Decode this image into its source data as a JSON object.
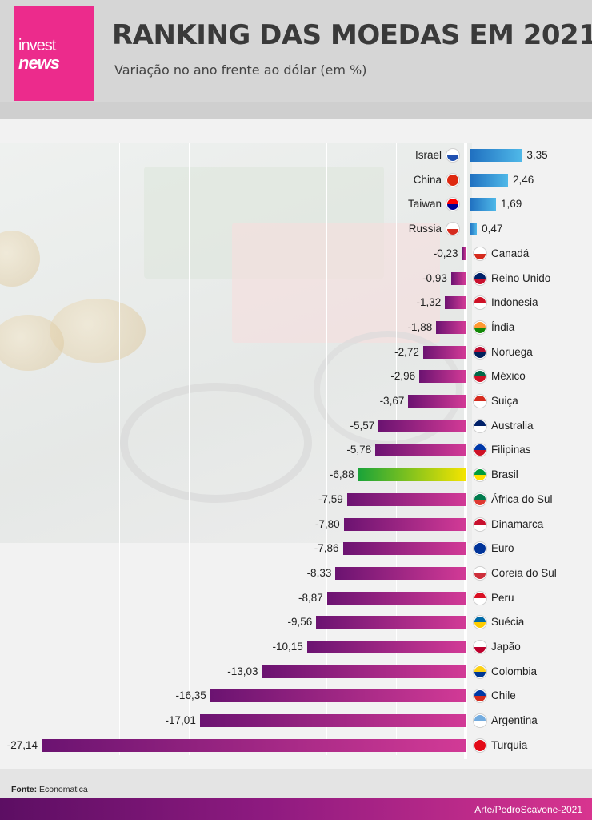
{
  "header": {
    "logo_line1": "invest",
    "logo_line2": "news",
    "title": "RANKING DAS MOEDAS EM 2021",
    "subtitle": "Variação no ano frente ao dólar (em %)"
  },
  "chart_data": {
    "type": "bar",
    "orientation": "horizontal",
    "title": "RANKING DAS MOEDAS EM 2021",
    "subtitle": "Variação no ano frente ao dólar (em %)",
    "xlabel": "",
    "ylabel": "",
    "xlim": [
      -27.14,
      3.35
    ],
    "grid": true,
    "legend": "none",
    "categories": [
      "Israel",
      "China",
      "Taiwan",
      "Russia",
      "Canadá",
      "Reino Unido",
      "Indonesia",
      "Índia",
      "Noruega",
      "México",
      "Suiça",
      "Australia",
      "Filipinas",
      "Brasil",
      "África do Sul",
      "Dinamarca",
      "Euro",
      "Coreia do Sul",
      "Peru",
      "Suécia",
      "Japão",
      "Colombia",
      "Chile",
      "Argentina",
      "Turquia"
    ],
    "value_labels": [
      "3,35",
      "2,46",
      "1,69",
      "0,47",
      "-0,23",
      "-0,93",
      "-1,32",
      "-1,88",
      "-2,72",
      "-2,96",
      "-3,67",
      "-5,57",
      "-5,78",
      "-6,88",
      "-7,59",
      "-7,80",
      "-7,86",
      "-8,33",
      "-8,87",
      "-9,56",
      "-10,15",
      "-13,03",
      "-16,35",
      "-17,01",
      "-27,14"
    ],
    "values": [
      3.35,
      2.46,
      1.69,
      0.47,
      -0.23,
      -0.93,
      -1.32,
      -1.88,
      -2.72,
      -2.96,
      -3.67,
      -5.57,
      -5.78,
      -6.88,
      -7.59,
      -7.8,
      -7.86,
      -8.33,
      -8.87,
      -9.56,
      -10.15,
      -13.03,
      -16.35,
      -17.01,
      -27.14
    ],
    "highlight": "Brasil",
    "flag_icons": [
      "israel-flag-icon",
      "china-flag-icon",
      "taiwan-flag-icon",
      "russia-flag-icon",
      "canada-flag-icon",
      "united-kingdom-flag-icon",
      "indonesia-flag-icon",
      "india-flag-icon",
      "norway-flag-icon",
      "mexico-flag-icon",
      "switzerland-flag-icon",
      "australia-flag-icon",
      "philippines-flag-icon",
      "brazil-flag-icon",
      "south-africa-flag-icon",
      "denmark-flag-icon",
      "euro-flag-icon",
      "south-korea-flag-icon",
      "peru-flag-icon",
      "sweden-flag-icon",
      "japan-flag-icon",
      "colombia-flag-icon",
      "chile-flag-icon",
      "argentina-flag-icon",
      "turkey-flag-icon"
    ],
    "flag_colors": [
      [
        "#ffffff",
        "#1f4fb0"
      ],
      [
        "#de2910",
        "#de2910"
      ],
      [
        "#fe0000",
        "#000095"
      ],
      [
        "#ffffff",
        "#d52b1e"
      ],
      [
        "#ffffff",
        "#d52b1e"
      ],
      [
        "#012169",
        "#c8102e"
      ],
      [
        "#ce1126",
        "#ffffff"
      ],
      [
        "#ff9933",
        "#138808"
      ],
      [
        "#ba0c2f",
        "#00205b"
      ],
      [
        "#006847",
        "#ce1126"
      ],
      [
        "#d52b1e",
        "#ffffff"
      ],
      [
        "#012169",
        "#ffffff"
      ],
      [
        "#0038a8",
        "#ce1126"
      ],
      [
        "#009c3b",
        "#ffdf00"
      ],
      [
        "#007a4d",
        "#de3831"
      ],
      [
        "#c8102e",
        "#ffffff"
      ],
      [
        "#003399",
        "#003399"
      ],
      [
        "#ffffff",
        "#cd2e3a"
      ],
      [
        "#d91023",
        "#ffffff"
      ],
      [
        "#006aa7",
        "#fecc00"
      ],
      [
        "#ffffff",
        "#bc002d"
      ],
      [
        "#fcd116",
        "#003893"
      ],
      [
        "#0039a6",
        "#d52b1e"
      ],
      [
        "#74acdf",
        "#ffffff"
      ],
      [
        "#e30a17",
        "#e30a17"
      ]
    ],
    "colors": {
      "positive_start": "#1f6fc0",
      "positive_end": "#4fb8e8",
      "negative_start": "#6b1371",
      "negative_end": "#d23a96",
      "highlight_start": "#1aa339",
      "highlight_end": "#f4e400"
    }
  },
  "footer": {
    "source_label": "Fonte:",
    "source_value": " Economatica",
    "credit": "Arte/PedroScavone-2021"
  }
}
